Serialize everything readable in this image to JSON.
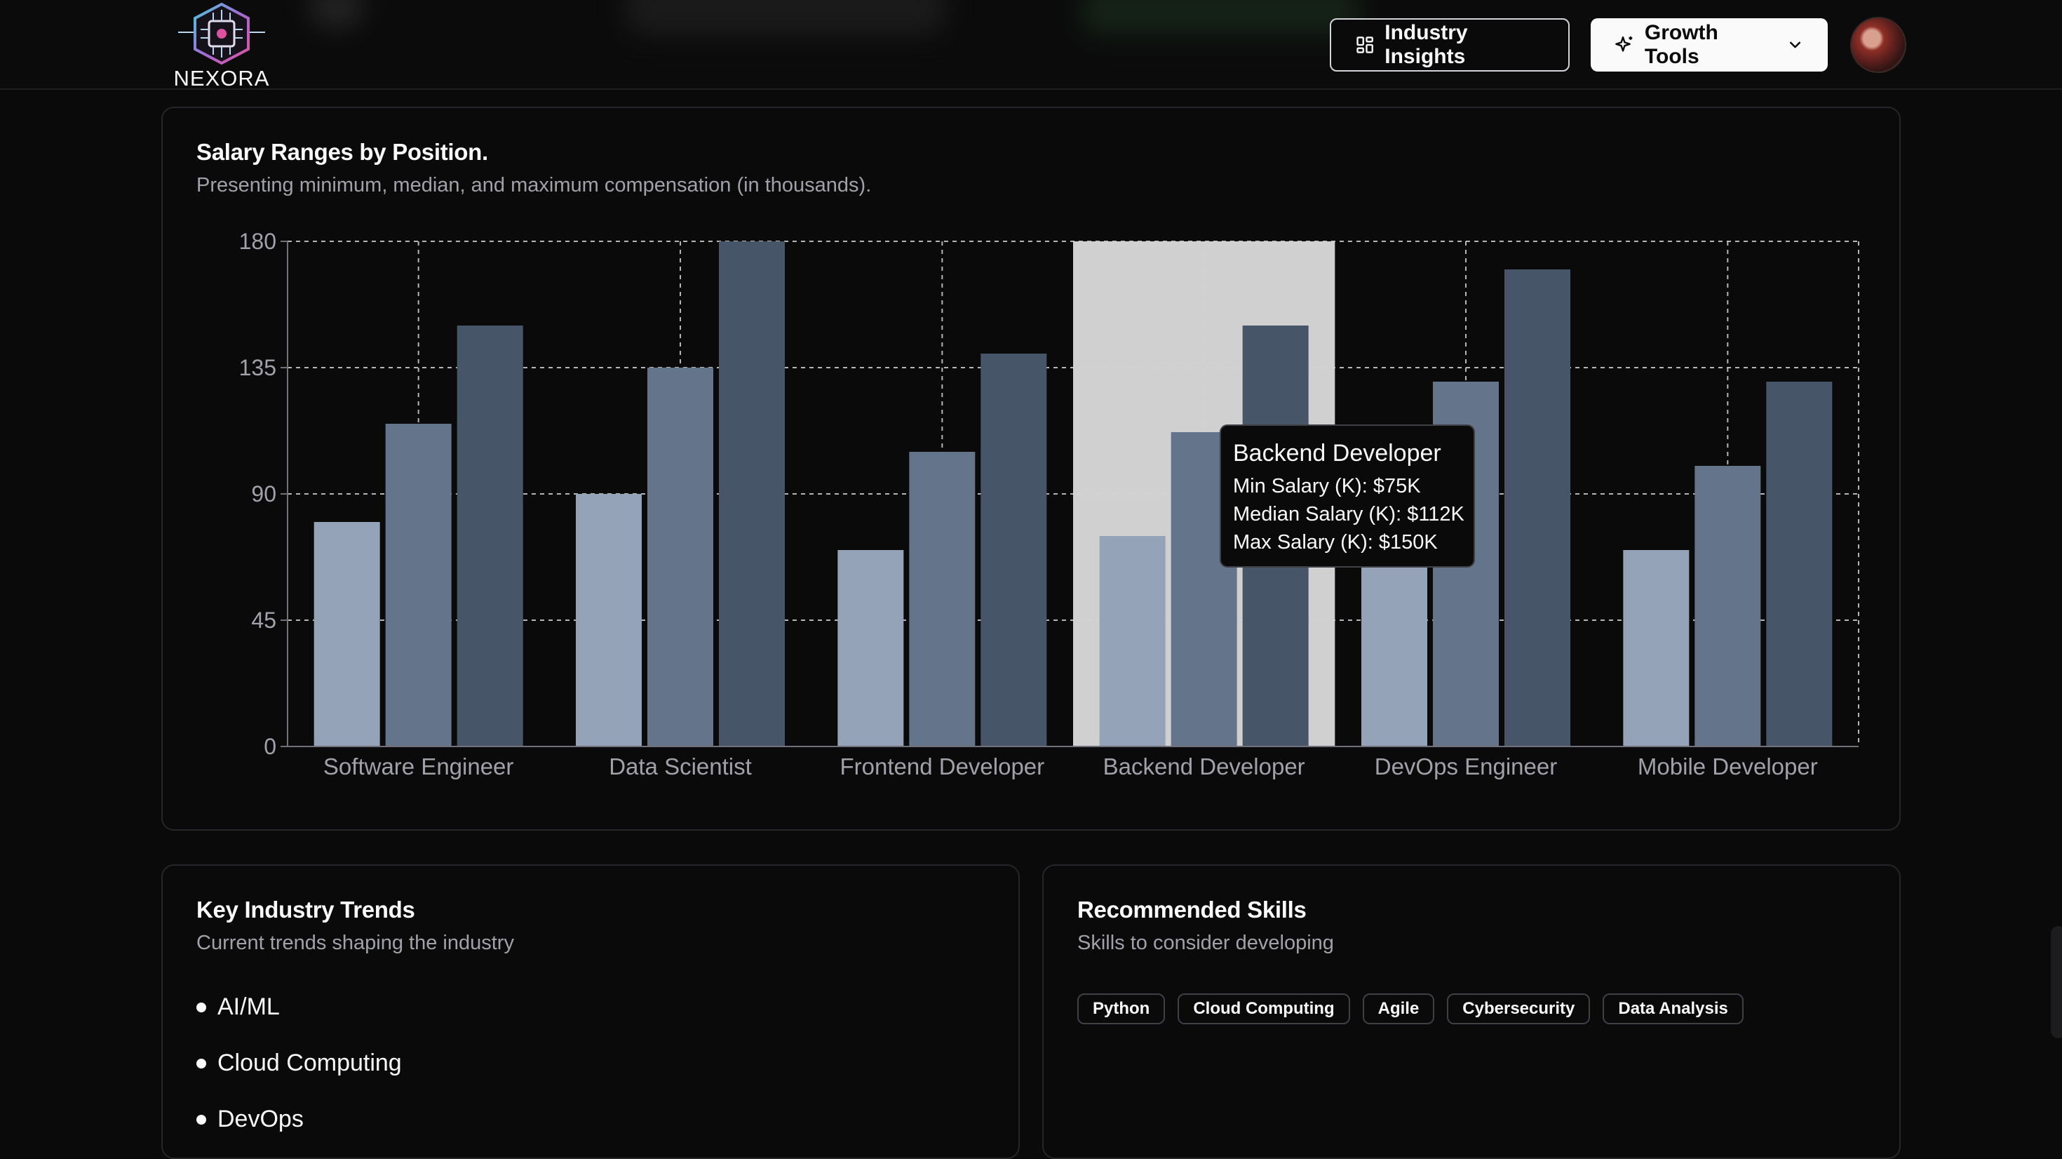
{
  "brand": {
    "logo_text": "NEXORA"
  },
  "header": {
    "industry_insights_label": "Industry Insights",
    "growth_tools_label": "Growth Tools"
  },
  "salary_card": {
    "title": "Salary Ranges by Position.",
    "subtitle": "Presenting minimum, median, and maximum compensation (in thousands)."
  },
  "chart_data": {
    "type": "bar",
    "title": "Salary Ranges by Position.",
    "subtitle": "Presenting minimum, median, and maximum compensation (in thousands).",
    "categories": [
      "Software Engineer",
      "Data Scientist",
      "Frontend Developer",
      "Backend Developer",
      "DevOps Engineer",
      "Mobile Developer"
    ],
    "series": [
      {
        "name": "Min Salary (K)",
        "values": [
          80,
          90,
          70,
          75,
          85,
          70
        ],
        "color": "#94a3b8"
      },
      {
        "name": "Median Salary (K)",
        "values": [
          115,
          135,
          105,
          112,
          130,
          100
        ],
        "color": "#64748b"
      },
      {
        "name": "Max Salary (K)",
        "values": [
          150,
          180,
          140,
          150,
          170,
          130
        ],
        "color": "#475569"
      }
    ],
    "ylim": [
      0,
      180
    ],
    "yticks": [
      0,
      45,
      90,
      135,
      180
    ],
    "grid": true,
    "highlight_category": "Backend Developer",
    "tooltip": {
      "title": "Backend Developer",
      "lines": [
        "Min Salary (K): $75K",
        "Median Salary (K): $112K",
        "Max Salary (K): $150K"
      ]
    }
  },
  "trends_card": {
    "title": "Key Industry Trends",
    "subtitle": "Current trends shaping the industry",
    "items": [
      "AI/ML",
      "Cloud Computing",
      "DevOps"
    ]
  },
  "skills_card": {
    "title": "Recommended Skills",
    "subtitle": "Skills to consider developing",
    "items": [
      "Python",
      "Cloud Computing",
      "Agile",
      "Cybersecurity",
      "Data Analysis"
    ]
  }
}
